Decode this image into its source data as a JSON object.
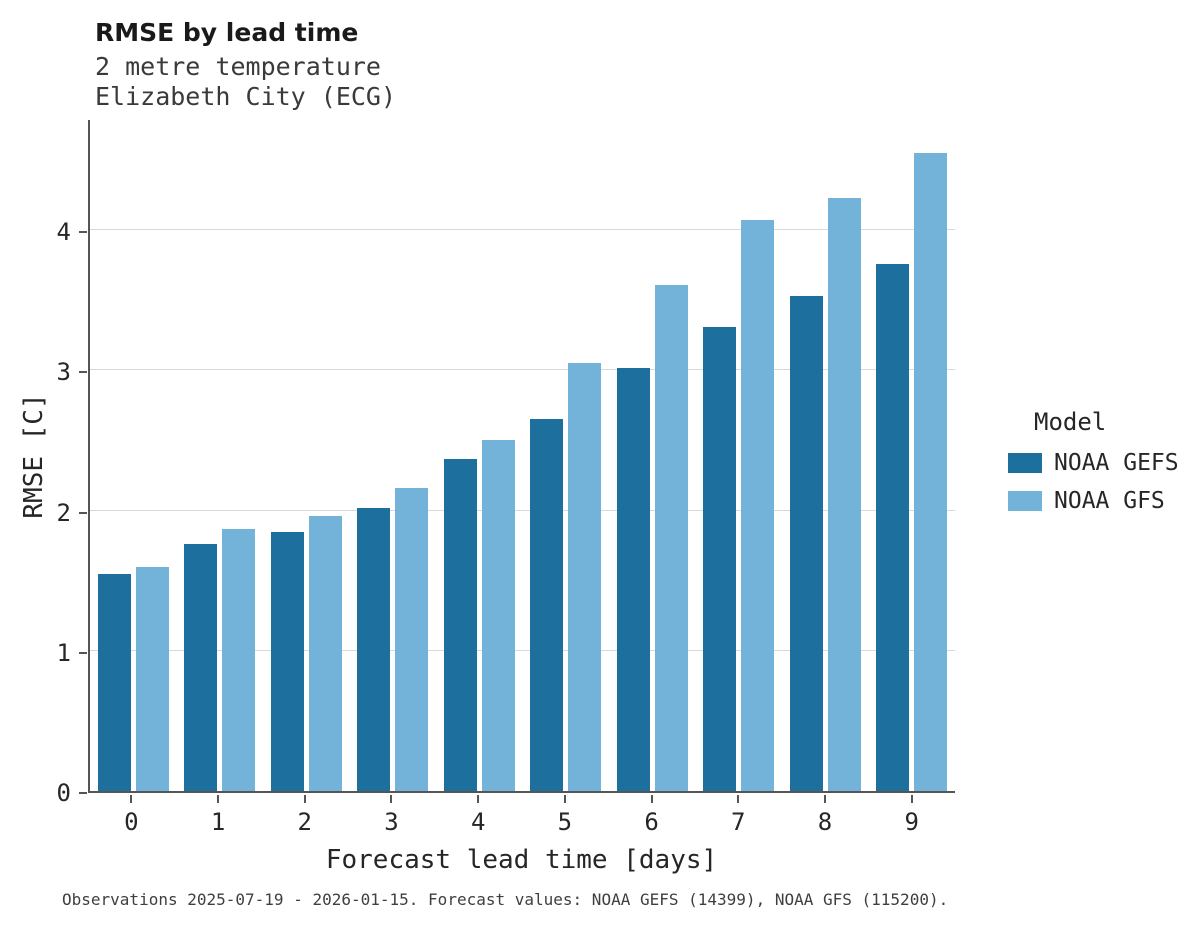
{
  "chart_data": {
    "type": "bar",
    "title": "RMSE by lead time",
    "subtitle": [
      "2 metre temperature",
      "Elizabeth City (ECG)"
    ],
    "xlabel": "Forecast lead time [days]",
    "ylabel": "RMSE [C]",
    "categories": [
      "0",
      "1",
      "2",
      "3",
      "4",
      "5",
      "6",
      "7",
      "8",
      "9"
    ],
    "series": [
      {
        "name": "NOAA GEFS",
        "color": "#1d6f9e",
        "values": [
          1.55,
          1.76,
          1.85,
          2.02,
          2.37,
          2.65,
          3.02,
          3.31,
          3.53,
          3.76
        ]
      },
      {
        "name": "NOAA GFS",
        "color": "#74b3d9",
        "values": [
          1.6,
          1.87,
          1.96,
          2.16,
          2.5,
          3.05,
          3.61,
          4.07,
          4.23,
          4.55
        ]
      }
    ],
    "ylim": [
      0,
      4.8
    ],
    "yticks": [
      0,
      1,
      2,
      3,
      4
    ],
    "grid": "horizontal",
    "legend_title": "Model",
    "legend_position": "right",
    "caption": "Observations 2025-07-19 - 2026-01-15. Forecast values: NOAA GEFS (14399), NOAA GFS (115200)."
  },
  "colors": {
    "gridline": "#d9d9d9",
    "spine": "#555555",
    "background": "#ffffff"
  }
}
